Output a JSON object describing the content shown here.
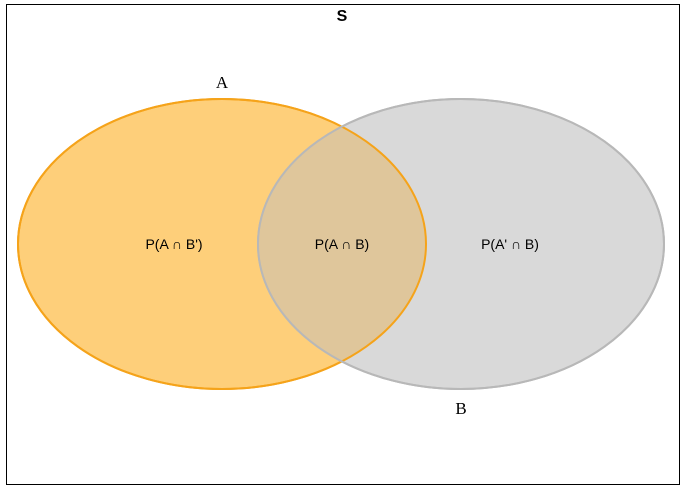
{
  "diagram": {
    "universe_label": "S",
    "sets": [
      {
        "id": "A",
        "label": "A",
        "fill": "#fecf7a",
        "stroke": "#f5a31a"
      },
      {
        "id": "B",
        "label": "B",
        "fill": "#d9d9d9",
        "stroke": "#b8b8b8"
      }
    ],
    "regions": {
      "a_only": "P(A ∩ B')",
      "a_and_b": "P(A ∩ B)",
      "b_only": "P(A' ∩ B)"
    },
    "overlap_color": "#dfc69b"
  }
}
